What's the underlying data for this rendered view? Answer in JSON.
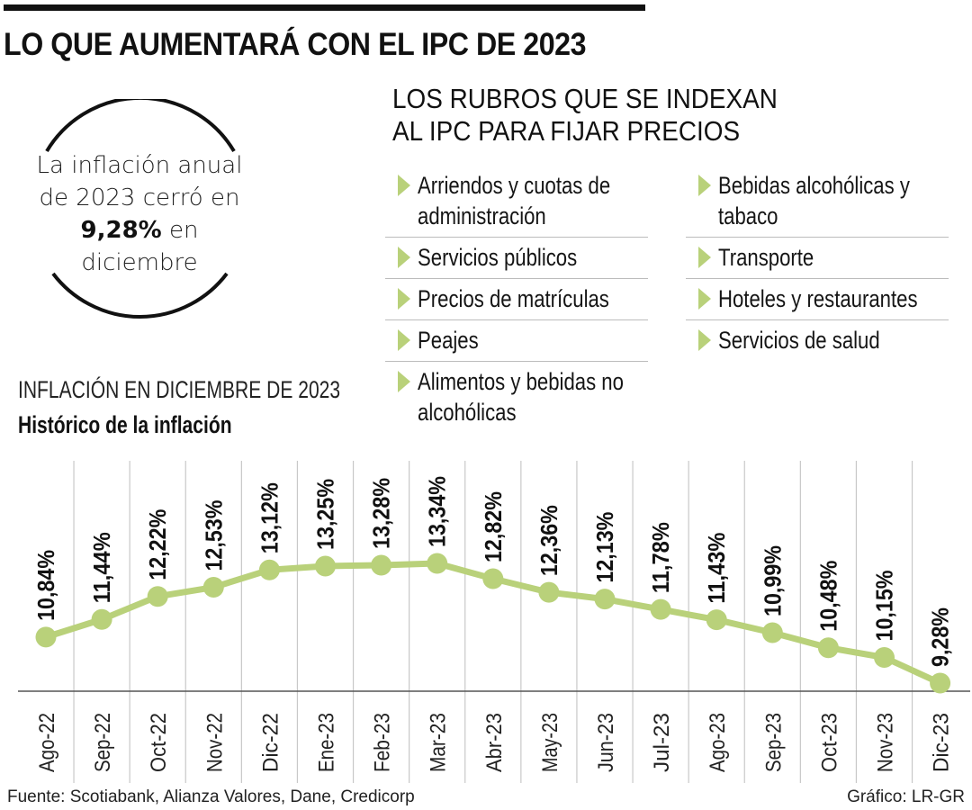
{
  "header": {
    "title": "LO QUE AUMENTARÁ CON EL IPC DE 2023"
  },
  "callout": {
    "line1": "La inflación anual",
    "line2": "de 2023 cerró en",
    "line3_bold": "9,28%",
    "line3_rest": " en",
    "line4": "diciembre"
  },
  "indexed_items": {
    "title_line1": "LOS RUBROS QUE SE INDEXAN",
    "title_line2": "AL IPC PARA FIJAR PRECIOS",
    "bullet_icon": "triangle-right-icon",
    "left_column": [
      {
        "line1": "Arriendos y cuotas de",
        "line2": "administración"
      },
      {
        "line1": "Servicios públicos"
      },
      {
        "line1": "Precios de matrículas"
      },
      {
        "line1": "Peajes"
      },
      {
        "line1": "Alimentos y bebidas no",
        "line2": "alcohólicas"
      }
    ],
    "right_column": [
      {
        "line1": "Bebidas alcohólicas y",
        "line2": "tabaco"
      },
      {
        "line1": "Transporte"
      },
      {
        "line1": "Hoteles y restaurantes"
      },
      {
        "line1": "Servicios de salud"
      }
    ]
  },
  "colors": {
    "accent_green": "#b9d17a",
    "gridline": "#c8c8c8",
    "axis": "#555555",
    "text": "#111111"
  },
  "chart_data": {
    "type": "line",
    "title": "INFLACIÓN EN DICIEMBRE DE 2023",
    "subtitle": "Histórico de la inflación",
    "xlabel": "",
    "ylabel": "",
    "categories": [
      "Ago-22",
      "Sep-22",
      "Oct-22",
      "Nov-22",
      "Dic-22",
      "Ene-23",
      "Feb-23",
      "Mar-23",
      "Abr-23",
      "May-23",
      "Jun-23",
      "Jul-23",
      "Ago-23",
      "Sep-23",
      "Oct-23",
      "Nov-23",
      "Dic-23"
    ],
    "series": [
      {
        "name": "Inflación anual",
        "values": [
          10.84,
          11.44,
          12.22,
          12.53,
          13.12,
          13.25,
          13.28,
          13.34,
          12.82,
          12.36,
          12.13,
          11.78,
          11.43,
          10.99,
          10.48,
          10.15,
          9.28
        ],
        "labels": [
          "10,84%",
          "11,44%",
          "12,22%",
          "12,53%",
          "13,12%",
          "13,25%",
          "13,28%",
          "13,34%",
          "12,82%",
          "12,36%",
          "12,13%",
          "11,78%",
          "11,43%",
          "10,99%",
          "10,48%",
          "10,15%",
          "9,28%"
        ],
        "color": "#b9d17a"
      }
    ],
    "grid": "vertical",
    "legend": "none",
    "data_labels": "rotated -90°, bold, above points"
  },
  "footer": {
    "source": "Fuente: Scotiabank, Alianza Valores, Dane, Credicorp",
    "credit": "Gráfico: LR-GR"
  }
}
